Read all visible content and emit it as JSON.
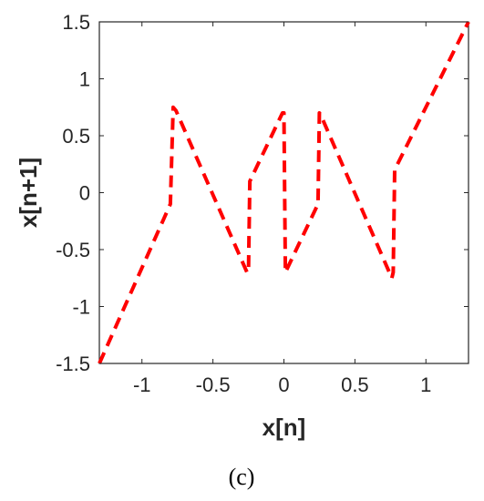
{
  "chart_data": {
    "type": "line",
    "title": "",
    "xlabel": "x[n]",
    "ylabel": "x[n+1]",
    "panel_label": "(c)",
    "xlim": [
      -1.3,
      1.3
    ],
    "ylim": [
      -1.5,
      1.5
    ],
    "x_ticks": [
      -1,
      -0.5,
      0,
      0.5,
      1
    ],
    "x_tick_labels": [
      "-1",
      "-0.5",
      "0",
      "0.5",
      "1"
    ],
    "y_ticks": [
      -1.5,
      -1,
      -0.5,
      0,
      0.5,
      1,
      1.5
    ],
    "y_tick_labels": [
      "-1.5",
      "-1",
      "-0.5",
      "0",
      "0.5",
      "1",
      "1.5"
    ],
    "grid": false,
    "series": [
      {
        "color": "#ff0000",
        "line_style": "dashed",
        "x": [
          -1.3,
          -0.8,
          -0.78,
          -0.76,
          -0.26,
          -0.25,
          -0.24,
          -0.01,
          0.0,
          0.01,
          0.24,
          0.25,
          0.26,
          0.76,
          0.77,
          0.78,
          1.3
        ],
        "y": [
          -1.5,
          -0.1,
          0.75,
          0.72,
          -0.7,
          -0.7,
          0.1,
          0.7,
          0.7,
          -0.7,
          -0.1,
          0.7,
          0.68,
          -0.75,
          -0.7,
          0.2,
          1.5
        ]
      }
    ]
  }
}
